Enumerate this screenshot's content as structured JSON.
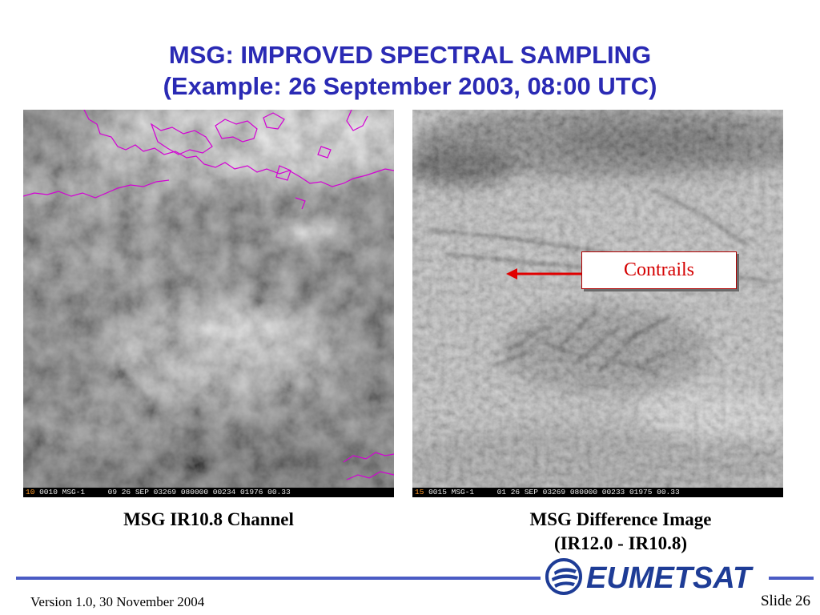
{
  "slide": {
    "title_line1": "MSG: IMPROVED SPECTRAL SAMPLING",
    "title_line2": "(Example: 26 September 2003, 08:00 UTC)",
    "left_image": {
      "channel_num": "10",
      "info_text": "0010 MSG-1     09 26 SEP 03269 080000 00234 01976 00.33",
      "caption": "MSG IR10.8 Channel"
    },
    "right_image": {
      "channel_num": "15",
      "info_text": "0015 MSG-1     01 26 SEP 03269 080000 00233 01975 00.33",
      "caption_line1": "MSG Difference Image",
      "caption_line2": "(IR12.0 - IR10.8)"
    },
    "callout": "Contrails",
    "logo_text": "EUMETSAT",
    "footer_version": "Version 1.0, 30 November 2004",
    "footer_slide_label": "Slide",
    "footer_slide_number": "26"
  },
  "colors": {
    "title": "#2a2ab4",
    "coastline": "#d400d4",
    "callout_border": "#b00000",
    "callout_text": "#d40000",
    "arrow": "#e00000",
    "rule": "#4a5bc4",
    "logo": "#1e3c96"
  },
  "icons": {
    "logo": "eumetsat-logo-icon",
    "arrow": "arrow-left-icon"
  }
}
